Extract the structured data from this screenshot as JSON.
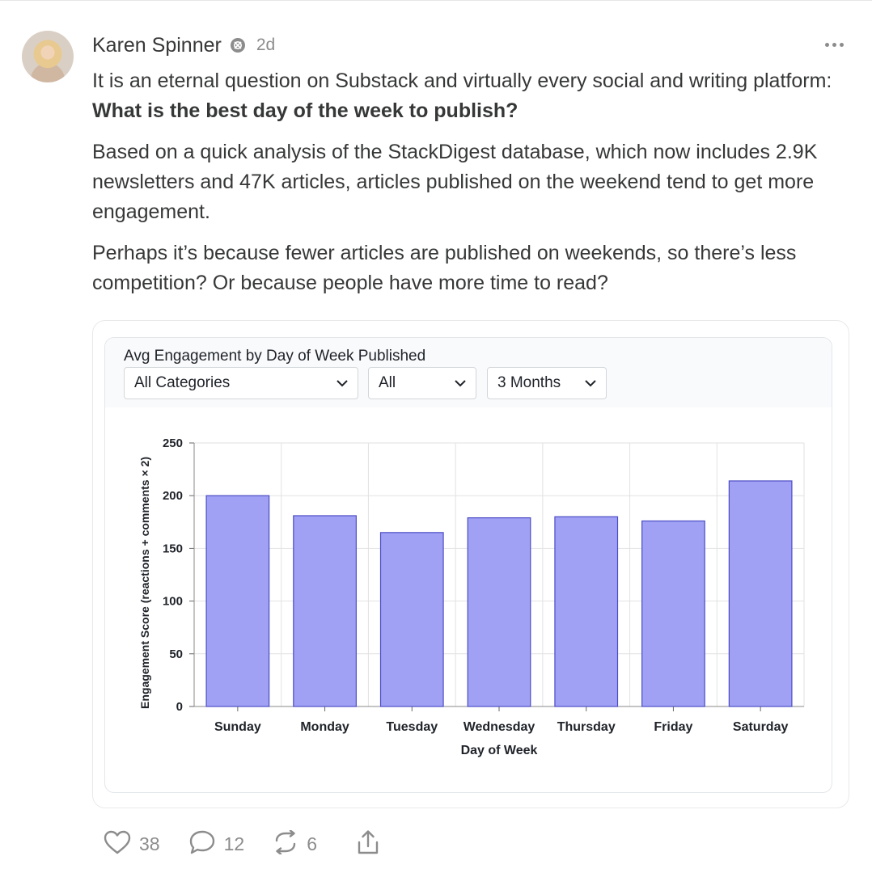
{
  "post": {
    "author_name": "Karen Spinner",
    "time_ago": "2d",
    "paragraphs": [
      {
        "lead": "It is an eternal question on Substack and virtually every social and writing platform: ",
        "bold": "What is the best day of the week to publish?"
      },
      {
        "lead": "Based on a quick analysis of the StackDigest database, which now includes 2.9K newsletters and 47K articles, articles published on the weekend tend to get more engagement.",
        "bold": ""
      },
      {
        "lead": "Perhaps it’s because fewer articles are published on weekends, so there’s less competition? Or because people have more time to read?",
        "bold": ""
      }
    ]
  },
  "filters": {
    "category": "All Categories",
    "scope": "All",
    "range": "3 Months"
  },
  "chart_data": {
    "type": "bar",
    "title": "Avg Engagement by Day of Week Published",
    "xlabel": "Day of Week",
    "ylabel": "Engagement Score (reactions + comments × 2)",
    "categories": [
      "Sunday",
      "Monday",
      "Tuesday",
      "Wednesday",
      "Thursday",
      "Friday",
      "Saturday"
    ],
    "values": [
      200,
      181,
      165,
      179,
      180,
      176,
      214
    ],
    "ylim": [
      0,
      250
    ],
    "yticks": [
      0,
      50,
      100,
      150,
      200,
      250
    ],
    "grid": true,
    "bar_color": "#a0a1f5",
    "bar_edge_color": "#4b4cc4"
  },
  "actions": {
    "likes": "38",
    "comments": "12",
    "restacks": "6"
  },
  "colors": {
    "text": "#363737",
    "muted": "#8c8c8c"
  }
}
